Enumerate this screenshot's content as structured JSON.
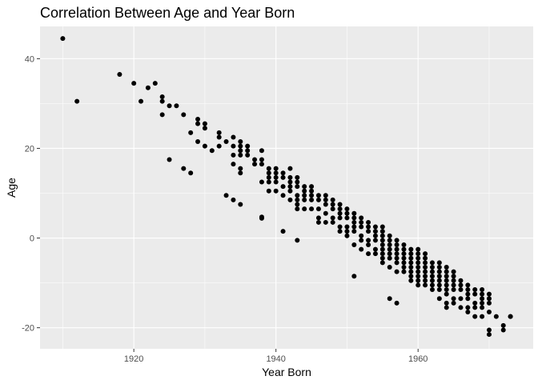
{
  "chart_data": {
    "type": "scatter",
    "title": "Correlation Between Age and Year Born",
    "xlabel": "Year Born",
    "ylabel": "Age",
    "xlim": [
      1906.8,
      1976.2
    ],
    "ylim": [
      -24.7,
      47.2
    ],
    "xticks": [
      1920,
      1940,
      1960
    ],
    "yticks": [
      -20,
      0,
      20,
      40
    ],
    "grid": true,
    "panel_background": "#ebebeb",
    "grid_major_color": "#ffffff",
    "point_color": "#000000",
    "points": [
      [
        1910,
        44.5
      ],
      [
        1912,
        30.5
      ],
      [
        1918,
        36.5
      ],
      [
        1920,
        34.5
      ],
      [
        1921,
        30.5
      ],
      [
        1922,
        33.5
      ],
      [
        1923,
        34.5
      ],
      [
        1924,
        31.5
      ],
      [
        1924,
        30.5
      ],
      [
        1924,
        27.5
      ],
      [
        1925,
        29.5
      ],
      [
        1925,
        17.5
      ],
      [
        1926,
        29.5
      ],
      [
        1927,
        27.5
      ],
      [
        1927,
        15.5
      ],
      [
        1928,
        23.5
      ],
      [
        1928,
        14.5
      ],
      [
        1929,
        26.5
      ],
      [
        1929,
        25.5
      ],
      [
        1929,
        21.5
      ],
      [
        1930,
        25.5
      ],
      [
        1930,
        24.5
      ],
      [
        1930,
        20.5
      ],
      [
        1931,
        19.5
      ],
      [
        1932,
        23.5
      ],
      [
        1932,
        22.5
      ],
      [
        1932,
        20.5
      ],
      [
        1933,
        21.5
      ],
      [
        1933,
        9.5
      ],
      [
        1934,
        22.5
      ],
      [
        1934,
        20.5
      ],
      [
        1934,
        18.5
      ],
      [
        1934,
        16.5
      ],
      [
        1934,
        8.5
      ],
      [
        1935,
        21.5
      ],
      [
        1935,
        20.5
      ],
      [
        1935,
        19.5
      ],
      [
        1935,
        18.5
      ],
      [
        1935,
        15.5
      ],
      [
        1935,
        14.5
      ],
      [
        1935,
        7.5
      ],
      [
        1936,
        20.5
      ],
      [
        1936,
        19.5
      ],
      [
        1936,
        18.5
      ],
      [
        1937,
        17.5
      ],
      [
        1937,
        16.5
      ],
      [
        1938,
        19.5
      ],
      [
        1938,
        17.5
      ],
      [
        1938,
        16.5
      ],
      [
        1938,
        12.5
      ],
      [
        1938,
        4.7
      ],
      [
        1938,
        4.4
      ],
      [
        1939,
        15.5
      ],
      [
        1939,
        14.5
      ],
      [
        1939,
        13.5
      ],
      [
        1939,
        12.5
      ],
      [
        1939,
        10.5
      ],
      [
        1940,
        15.5
      ],
      [
        1940,
        14.5
      ],
      [
        1940,
        13.5
      ],
      [
        1940,
        12.5
      ],
      [
        1940,
        10.5
      ],
      [
        1941,
        14.5
      ],
      [
        1941,
        13.5
      ],
      [
        1941,
        11.5
      ],
      [
        1941,
        9.5
      ],
      [
        1941,
        1.5
      ],
      [
        1942,
        15.5
      ],
      [
        1942,
        13.5
      ],
      [
        1942,
        12.5
      ],
      [
        1942,
        11.5
      ],
      [
        1942,
        10.5
      ],
      [
        1942,
        8.5
      ],
      [
        1943,
        13.5
      ],
      [
        1943,
        12.5
      ],
      [
        1943,
        11.5
      ],
      [
        1943,
        9.5
      ],
      [
        1943,
        8.5
      ],
      [
        1943,
        7.5
      ],
      [
        1943,
        6.5
      ],
      [
        1943,
        -0.5
      ],
      [
        1944,
        11.5
      ],
      [
        1944,
        10.5
      ],
      [
        1944,
        9.5
      ],
      [
        1944,
        8.5
      ],
      [
        1944,
        6.5
      ],
      [
        1945,
        11.5
      ],
      [
        1945,
        10.5
      ],
      [
        1945,
        9.5
      ],
      [
        1945,
        8.5
      ],
      [
        1945,
        6.5
      ],
      [
        1946,
        9.5
      ],
      [
        1946,
        8.5
      ],
      [
        1946,
        6.5
      ],
      [
        1946,
        4.5
      ],
      [
        1946,
        3.5
      ],
      [
        1947,
        9.5
      ],
      [
        1947,
        8.5
      ],
      [
        1947,
        7.5
      ],
      [
        1947,
        5.5
      ],
      [
        1947,
        3.5
      ],
      [
        1948,
        8.5
      ],
      [
        1948,
        7.5
      ],
      [
        1948,
        6.5
      ],
      [
        1948,
        4.5
      ],
      [
        1948,
        3.5
      ],
      [
        1949,
        7.5
      ],
      [
        1949,
        6.5
      ],
      [
        1949,
        5.5
      ],
      [
        1949,
        4.5
      ],
      [
        1949,
        2.5
      ],
      [
        1949,
        1.5
      ],
      [
        1950,
        6.5
      ],
      [
        1950,
        5.5
      ],
      [
        1950,
        4.5
      ],
      [
        1950,
        2.5
      ],
      [
        1950,
        1.5
      ],
      [
        1950,
        0.5
      ],
      [
        1951,
        5.5
      ],
      [
        1951,
        4.5
      ],
      [
        1951,
        3.5
      ],
      [
        1951,
        2.5
      ],
      [
        1951,
        1.5
      ],
      [
        1951,
        -1.5
      ],
      [
        1951,
        -8.5
      ],
      [
        1952,
        4.5
      ],
      [
        1952,
        3.5
      ],
      [
        1952,
        2.5
      ],
      [
        1952,
        0.5
      ],
      [
        1952,
        -0.5
      ],
      [
        1952,
        -2.5
      ],
      [
        1953,
        3.5
      ],
      [
        1953,
        2.5
      ],
      [
        1953,
        1.5
      ],
      [
        1953,
        -0.5
      ],
      [
        1953,
        -1.5
      ],
      [
        1953,
        -3.5
      ],
      [
        1954,
        2.5
      ],
      [
        1954,
        1.5
      ],
      [
        1954,
        0.5
      ],
      [
        1954,
        -0.5
      ],
      [
        1954,
        -2.5
      ],
      [
        1954,
        -3.5
      ],
      [
        1955,
        2.5
      ],
      [
        1955,
        1.5
      ],
      [
        1955,
        0.5
      ],
      [
        1955,
        -0.5
      ],
      [
        1955,
        -1.5
      ],
      [
        1955,
        -2.5
      ],
      [
        1955,
        -3.5
      ],
      [
        1955,
        -4.5
      ],
      [
        1955,
        -5.5
      ],
      [
        1956,
        0.5
      ],
      [
        1956,
        -0.5
      ],
      [
        1956,
        -1.5
      ],
      [
        1956,
        -2.5
      ],
      [
        1956,
        -3.5
      ],
      [
        1956,
        -4.5
      ],
      [
        1956,
        -6.5
      ],
      [
        1956,
        -13.5
      ],
      [
        1957,
        -0.5
      ],
      [
        1957,
        -1.5
      ],
      [
        1957,
        -2.5
      ],
      [
        1957,
        -3.5
      ],
      [
        1957,
        -4.5
      ],
      [
        1957,
        -5.5
      ],
      [
        1957,
        -7.5
      ],
      [
        1957,
        -14.5
      ],
      [
        1958,
        -1.5
      ],
      [
        1958,
        -2.5
      ],
      [
        1958,
        -3.5
      ],
      [
        1958,
        -4.5
      ],
      [
        1958,
        -5.5
      ],
      [
        1958,
        -6.5
      ],
      [
        1958,
        -7.5
      ],
      [
        1959,
        -2.5
      ],
      [
        1959,
        -3.5
      ],
      [
        1959,
        -4.5
      ],
      [
        1959,
        -5.5
      ],
      [
        1959,
        -6.5
      ],
      [
        1959,
        -7.5
      ],
      [
        1959,
        -8.5
      ],
      [
        1959,
        -9.5
      ],
      [
        1960,
        -2.5
      ],
      [
        1960,
        -3.5
      ],
      [
        1960,
        -4.5
      ],
      [
        1960,
        -5.5
      ],
      [
        1960,
        -6.5
      ],
      [
        1960,
        -7.5
      ],
      [
        1960,
        -8.5
      ],
      [
        1960,
        -9.5
      ],
      [
        1960,
        -10.5
      ],
      [
        1961,
        -3.5
      ],
      [
        1961,
        -4.5
      ],
      [
        1961,
        -5.5
      ],
      [
        1961,
        -6.5
      ],
      [
        1961,
        -7.5
      ],
      [
        1961,
        -8.5
      ],
      [
        1961,
        -9.5
      ],
      [
        1961,
        -10.5
      ],
      [
        1962,
        -5.5
      ],
      [
        1962,
        -6.5
      ],
      [
        1962,
        -7.5
      ],
      [
        1962,
        -8.5
      ],
      [
        1962,
        -9.5
      ],
      [
        1962,
        -10.5
      ],
      [
        1962,
        -11.5
      ],
      [
        1963,
        -5.5
      ],
      [
        1963,
        -6.5
      ],
      [
        1963,
        -7.5
      ],
      [
        1963,
        -8.5
      ],
      [
        1963,
        -9.5
      ],
      [
        1963,
        -10.5
      ],
      [
        1963,
        -11.5
      ],
      [
        1963,
        -13.5
      ],
      [
        1964,
        -6.5
      ],
      [
        1964,
        -7.5
      ],
      [
        1964,
        -8.5
      ],
      [
        1964,
        -9.5
      ],
      [
        1964,
        -10.5
      ],
      [
        1964,
        -11.5
      ],
      [
        1964,
        -12.5
      ],
      [
        1964,
        -14.5
      ],
      [
        1964,
        -15.5
      ],
      [
        1965,
        -7.5
      ],
      [
        1965,
        -8.5
      ],
      [
        1965,
        -9.5
      ],
      [
        1965,
        -10.5
      ],
      [
        1965,
        -11.5
      ],
      [
        1965,
        -13.5
      ],
      [
        1965,
        -14.5
      ],
      [
        1966,
        -9.5
      ],
      [
        1966,
        -10.5
      ],
      [
        1966,
        -11.5
      ],
      [
        1966,
        -13.5
      ],
      [
        1966,
        -15.5
      ],
      [
        1967,
        -10.5
      ],
      [
        1967,
        -11.5
      ],
      [
        1967,
        -12.5
      ],
      [
        1967,
        -13.5
      ],
      [
        1967,
        -15.5
      ],
      [
        1967,
        -16.5
      ],
      [
        1968,
        -11.5
      ],
      [
        1968,
        -12.5
      ],
      [
        1968,
        -14.5
      ],
      [
        1968,
        -15.5
      ],
      [
        1968,
        -17.5
      ],
      [
        1969,
        -11.5
      ],
      [
        1969,
        -12.5
      ],
      [
        1969,
        -13.5
      ],
      [
        1969,
        -14.5
      ],
      [
        1969,
        -15.5
      ],
      [
        1969,
        -17.5
      ],
      [
        1970,
        -12.5
      ],
      [
        1970,
        -13.5
      ],
      [
        1970,
        -14.5
      ],
      [
        1970,
        -16.5
      ],
      [
        1970,
        -20.5
      ],
      [
        1970,
        -21.5
      ],
      [
        1971,
        -17.5
      ],
      [
        1972,
        -19.5
      ],
      [
        1972,
        -20.5
      ],
      [
        1973,
        -17.5
      ],
      [
        1973,
        -17.5
      ]
    ]
  }
}
